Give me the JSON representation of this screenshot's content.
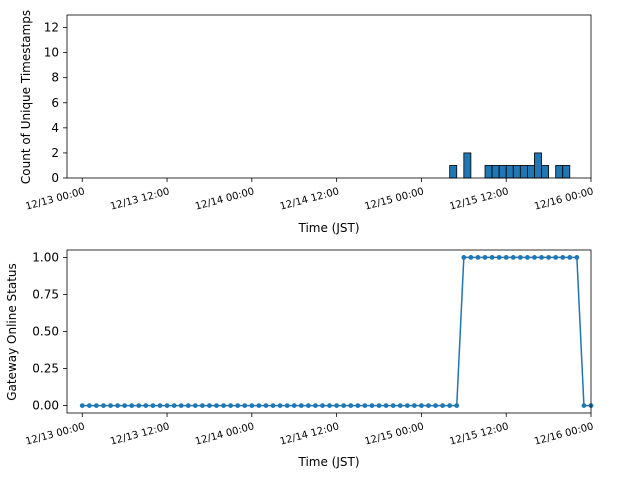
{
  "chart_data": [
    {
      "type": "bar",
      "xlabel": "Time (JST)",
      "ylabel": "Count of Unique Timestamps",
      "xlim": [
        "12/13 00:00",
        "12/16 00:00"
      ],
      "ylim": [
        0,
        13
      ],
      "yticks": [
        0,
        2,
        4,
        6,
        8,
        10,
        12
      ],
      "xtick_labels": [
        "12/13 00:00",
        "12/13 12:00",
        "12/14 00:00",
        "12/14 12:00",
        "12/15 00:00",
        "12/15 12:00",
        "12/16 00:00"
      ],
      "bin_width_hours": 1,
      "bar_color": "#1f77b4",
      "bars": [
        {
          "x": "12/15 04:00",
          "value": 1
        },
        {
          "x": "12/15 06:00",
          "value": 2
        },
        {
          "x": "12/15 09:00",
          "value": 1
        },
        {
          "x": "12/15 10:00",
          "value": 1
        },
        {
          "x": "12/15 11:00",
          "value": 1
        },
        {
          "x": "12/15 12:00",
          "value": 1
        },
        {
          "x": "12/15 13:00",
          "value": 1
        },
        {
          "x": "12/15 14:00",
          "value": 1
        },
        {
          "x": "12/15 15:00",
          "value": 1
        },
        {
          "x": "12/15 16:00",
          "value": 2
        },
        {
          "x": "12/15 17:00",
          "value": 1
        },
        {
          "x": "12/15 19:00",
          "value": 1
        },
        {
          "x": "12/15 20:00",
          "value": 1
        }
      ]
    },
    {
      "type": "line",
      "xlabel": "Time (JST)",
      "ylabel": "Gateway Online Status",
      "xlim": [
        "12/13 00:00",
        "12/16 00:00"
      ],
      "ylim": [
        -0.05,
        1.05
      ],
      "yticks": [
        0.0,
        0.25,
        0.5,
        0.75,
        1.0
      ],
      "ytick_labels": [
        "0.00",
        "0.25",
        "0.50",
        "0.75",
        "1.00"
      ],
      "xtick_labels": [
        "12/13 00:00",
        "12/13 12:00",
        "12/14 00:00",
        "12/14 12:00",
        "12/15 00:00",
        "12/15 12:00",
        "12/16 00:00"
      ],
      "line_color": "#1f77b4",
      "series": [
        {
          "x_start": "12/13 00:00",
          "x_step_hours": 1,
          "values": [
            0,
            0,
            0,
            0,
            0,
            0,
            0,
            0,
            0,
            0,
            0,
            0,
            0,
            0,
            0,
            0,
            0,
            0,
            0,
            0,
            0,
            0,
            0,
            0,
            0,
            0,
            0,
            0,
            0,
            0,
            0,
            0,
            0,
            0,
            0,
            0,
            0,
            0,
            0,
            0,
            0,
            0,
            0,
            0,
            0,
            0,
            0,
            0,
            0,
            0,
            0,
            0,
            0,
            0,
            1,
            1,
            1,
            1,
            1,
            1,
            1,
            1,
            1,
            1,
            1,
            1,
            1,
            1,
            1,
            1,
            1,
            0,
            0
          ]
        }
      ]
    }
  ]
}
